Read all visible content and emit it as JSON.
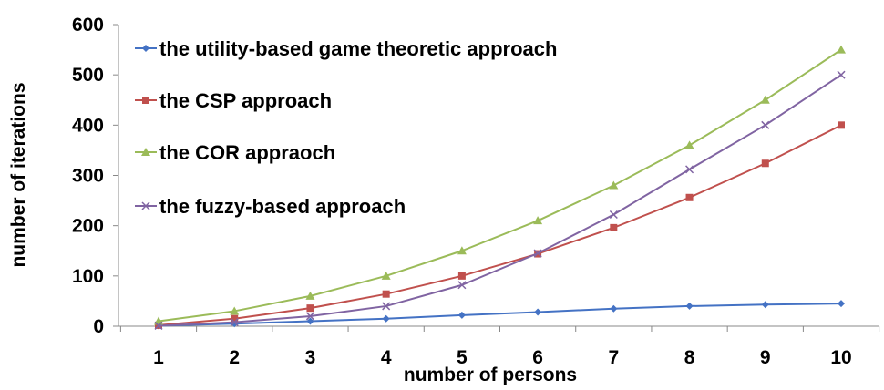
{
  "chart_data": {
    "type": "line",
    "title": "",
    "xlabel": "number of persons",
    "ylabel": "number of iterations",
    "categories": [
      "1",
      "2",
      "3",
      "4",
      "5",
      "6",
      "7",
      "8",
      "9",
      "10"
    ],
    "x": [
      1,
      2,
      3,
      4,
      5,
      6,
      7,
      8,
      9,
      10
    ],
    "ylim": [
      0,
      600
    ],
    "yticks": [
      0,
      100,
      200,
      300,
      400,
      500,
      600
    ],
    "yticklabels": [
      "0",
      "100",
      "200",
      "300",
      "400",
      "500",
      "600"
    ],
    "grid": false,
    "legend_position": "top-left",
    "series": [
      {
        "name": "the utility-based game theoretic approach",
        "color": "#4472C4",
        "marker": "diamond",
        "values": [
          1,
          5,
          10,
          15,
          22,
          28,
          35,
          40,
          43,
          45
        ]
      },
      {
        "name": "the CSP approach",
        "color": "#C0504D",
        "marker": "square",
        "values": [
          2,
          15,
          36,
          64,
          100,
          144,
          196,
          256,
          324,
          400
        ]
      },
      {
        "name": "the COR appraoch",
        "color": "#9BBB59",
        "marker": "triangle",
        "values": [
          10,
          30,
          60,
          100,
          150,
          210,
          280,
          360,
          450,
          550
        ]
      },
      {
        "name": "the fuzzy-based approach",
        "color": "#8064A2",
        "marker": "x",
        "values": [
          1,
          8,
          20,
          40,
          82,
          145,
          222,
          312,
          400,
          500
        ]
      }
    ]
  }
}
